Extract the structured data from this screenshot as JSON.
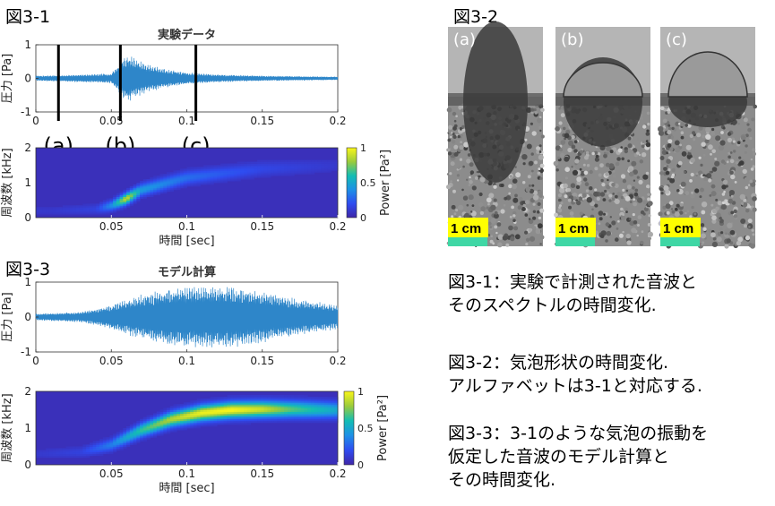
{
  "figure_labels": {
    "fig31": "図3-1",
    "fig32": "図3-2",
    "fig33": "図3-3"
  },
  "photo_panel": {
    "panels": [
      "(a)",
      "(b)",
      "(c)"
    ],
    "scale_label": "1 cm",
    "colors": {
      "scale_highlight": "#ffff00",
      "scale_bar": "#3fd7a5"
    }
  },
  "captions": {
    "c31": [
      "図3-1：実験で計測された音波と",
      "そのスペクトルの時間変化."
    ],
    "c32": [
      "図3-2：気泡形状の時間変化.",
      "アルファベットは3-1と対応する."
    ],
    "c33": [
      "図3-3：3-1のような気泡の振動を",
      "仮定した音波のモデル計算と",
      "その時間変化."
    ]
  },
  "chart_data": [
    {
      "id": "exp-wave",
      "type": "line",
      "title": "実験データ",
      "xlabel": "",
      "ylabel": "圧力 [Pa]",
      "xlim": [
        0,
        0.2
      ],
      "ylim": [
        -1,
        1
      ],
      "xticks": [
        "0",
        "0.05",
        "0.1",
        "0.15",
        "0.2"
      ],
      "yticks": [
        "-1",
        "0",
        "1"
      ],
      "envelope": {
        "x": [
          0,
          0.02,
          0.05,
          0.055,
          0.06,
          0.065,
          0.07,
          0.08,
          0.09,
          0.1,
          0.12,
          0.15,
          0.2
        ],
        "amplitude": [
          0.08,
          0.1,
          0.15,
          0.45,
          0.72,
          0.62,
          0.5,
          0.35,
          0.25,
          0.18,
          0.12,
          0.08,
          0.05
        ]
      },
      "markers": [
        {
          "label": "(a)",
          "x": 0.015
        },
        {
          "label": "(b)",
          "x": 0.056
        },
        {
          "label": "(c)",
          "x": 0.106
        }
      ],
      "colors": {
        "line": "#2e86c9"
      }
    },
    {
      "id": "exp-spectrum",
      "type": "heatmap",
      "title": "",
      "xlabel": "時間 [sec]",
      "ylabel": "周波数 [kHz]",
      "xlim": [
        0,
        0.2
      ],
      "ylim": [
        0,
        2
      ],
      "xticks": [
        "0.05",
        "0.1",
        "0.15",
        "0.2"
      ],
      "yticks": [
        "0",
        "1",
        "2"
      ],
      "colorbar": {
        "label": "Power [Pa²]",
        "min": 0,
        "max": 1,
        "ticks": [
          "0",
          "0.5",
          "1"
        ]
      },
      "ridge": {
        "x": [
          0.01,
          0.04,
          0.05,
          0.06,
          0.07,
          0.1,
          0.15,
          0.2
        ],
        "freq": [
          0.2,
          0.25,
          0.35,
          0.55,
          0.8,
          1.15,
          1.4,
          1.5
        ],
        "power": [
          0.05,
          0.1,
          0.35,
          0.85,
          0.4,
          0.25,
          0.12,
          0.05
        ]
      }
    },
    {
      "id": "model-wave",
      "type": "line",
      "title": "モデル計算",
      "xlabel": "",
      "ylabel": "圧力 [Pa]",
      "xlim": [
        0,
        0.2
      ],
      "ylim": [
        -1,
        1
      ],
      "xticks": [
        "0",
        "0.05",
        "0.1",
        "0.15",
        "0.2"
      ],
      "yticks": [
        "-1",
        "0",
        "1"
      ],
      "envelope": {
        "x": [
          0,
          0.03,
          0.05,
          0.07,
          0.09,
          0.11,
          0.13,
          0.15,
          0.17,
          0.2
        ],
        "amplitude": [
          0.1,
          0.15,
          0.35,
          0.65,
          0.85,
          0.9,
          0.88,
          0.75,
          0.55,
          0.35
        ]
      },
      "colors": {
        "line": "#2e86c9"
      }
    },
    {
      "id": "model-spectrum",
      "type": "heatmap",
      "title": "",
      "xlabel": "時間 [sec]",
      "ylabel": "周波数 [kHz]",
      "xlim": [
        0,
        0.2
      ],
      "ylim": [
        0,
        2
      ],
      "xticks": [
        "0.05",
        "0.1",
        "0.15",
        "0.2"
      ],
      "yticks": [
        "0",
        "1",
        "2"
      ],
      "colorbar": {
        "label": "Power [Pa²]",
        "min": 0,
        "max": 1,
        "ticks": [
          "0",
          "0.5",
          "1"
        ]
      },
      "ridge": {
        "x": [
          0,
          0.03,
          0.05,
          0.07,
          0.09,
          0.11,
          0.13,
          0.15,
          0.17,
          0.2
        ],
        "freq": [
          0.3,
          0.35,
          0.55,
          0.95,
          1.25,
          1.42,
          1.5,
          1.52,
          1.52,
          1.5
        ],
        "power": [
          0.05,
          0.1,
          0.3,
          0.6,
          0.8,
          0.92,
          0.95,
          0.85,
          0.65,
          0.45
        ]
      }
    }
  ]
}
